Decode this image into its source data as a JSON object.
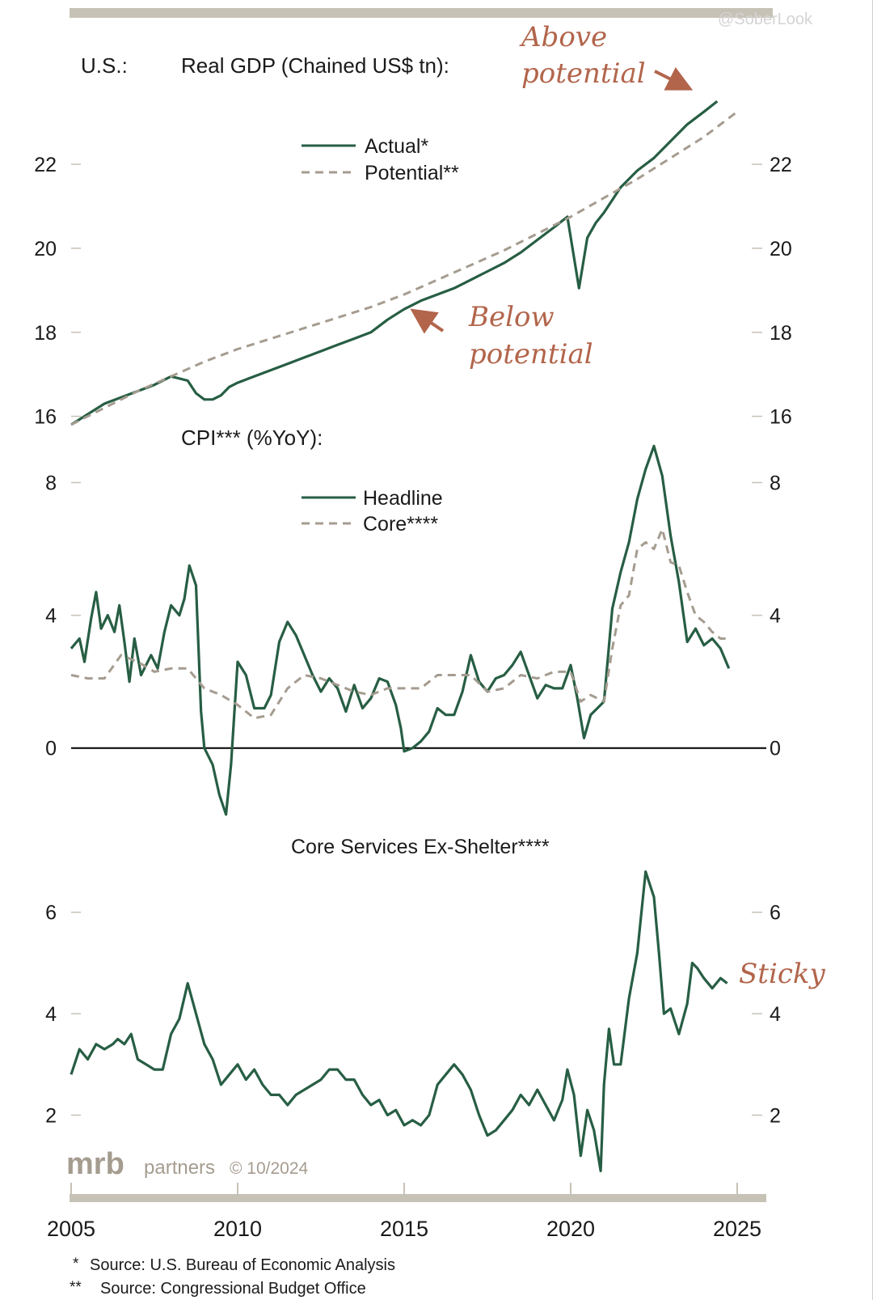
{
  "watermark": "@SoberLook",
  "colors": {
    "actual": "#275e44",
    "potential": "#a59c90",
    "annotation": "#b2654b",
    "axis": "#c7c2b6",
    "text": "#1a1a1a"
  },
  "chart_data": [
    {
      "type": "line",
      "panel": "gdp",
      "prefix": "U.S.:",
      "title": "Real GDP (Chained US$ tn):",
      "ylim": [
        15.8,
        23.6
      ],
      "yticks": [
        16,
        18,
        20,
        22
      ],
      "ytick_labels": [
        "16",
        "18",
        "20",
        "22"
      ],
      "legend": [
        "Actual*",
        "Potential**"
      ],
      "annotations": {
        "above": [
          "Above",
          "potential"
        ],
        "below": [
          "Below",
          "potential"
        ]
      },
      "series": [
        {
          "name": "Actual*",
          "x": [
            2005.0,
            2005.5,
            2006.0,
            2006.5,
            2007.0,
            2007.5,
            2008.0,
            2008.5,
            2008.75,
            2009.0,
            2009.25,
            2009.5,
            2009.75,
            2010.0,
            2010.5,
            2011.0,
            2011.5,
            2012.0,
            2012.5,
            2013.0,
            2013.5,
            2014.0,
            2014.5,
            2015.0,
            2015.5,
            2016.0,
            2016.5,
            2017.0,
            2017.5,
            2018.0,
            2018.5,
            2019.0,
            2019.5,
            2019.9,
            2020.25,
            2020.5,
            2020.75,
            2021.0,
            2021.5,
            2022.0,
            2022.5,
            2023.0,
            2023.5,
            2024.0,
            2024.4
          ],
          "values": [
            15.8,
            16.05,
            16.3,
            16.45,
            16.6,
            16.75,
            16.95,
            16.85,
            16.55,
            16.4,
            16.4,
            16.5,
            16.7,
            16.8,
            16.95,
            17.1,
            17.25,
            17.4,
            17.55,
            17.7,
            17.85,
            18.0,
            18.3,
            18.55,
            18.75,
            18.9,
            19.05,
            19.25,
            19.45,
            19.65,
            19.9,
            20.2,
            20.5,
            20.75,
            19.05,
            20.25,
            20.6,
            20.85,
            21.45,
            21.85,
            22.15,
            22.55,
            22.95,
            23.25,
            23.5
          ]
        },
        {
          "name": "Potential**",
          "x": [
            2005,
            2006,
            2007,
            2008,
            2009,
            2010,
            2011,
            2012,
            2013,
            2014,
            2015,
            2016,
            2017,
            2018,
            2019,
            2020,
            2021,
            2022,
            2023,
            2024,
            2025
          ],
          "values": [
            15.8,
            16.2,
            16.6,
            16.95,
            17.3,
            17.6,
            17.85,
            18.1,
            18.35,
            18.6,
            18.9,
            19.25,
            19.6,
            19.95,
            20.35,
            20.75,
            21.2,
            21.65,
            22.15,
            22.65,
            23.25
          ]
        }
      ]
    },
    {
      "type": "line",
      "panel": "cpi",
      "title": "CPI*** (%YoY):",
      "ylim": [
        -2.2,
        9.5
      ],
      "yticks": [
        0,
        4,
        8
      ],
      "ytick_labels": [
        "0",
        "4",
        "8"
      ],
      "legend": [
        "Headline",
        "Core****"
      ],
      "series": [
        {
          "name": "Headline",
          "x": [
            2005.0,
            2005.25,
            2005.4,
            2005.6,
            2005.75,
            2005.9,
            2006.1,
            2006.3,
            2006.45,
            2006.6,
            2006.75,
            2006.9,
            2007.1,
            2007.25,
            2007.4,
            2007.6,
            2007.8,
            2008.0,
            2008.25,
            2008.4,
            2008.55,
            2008.75,
            2008.9,
            2009.0,
            2009.25,
            2009.45,
            2009.65,
            2009.8,
            2010.0,
            2010.25,
            2010.5,
            2010.8,
            2011.0,
            2011.25,
            2011.5,
            2011.75,
            2012.0,
            2012.25,
            2012.5,
            2012.75,
            2013.0,
            2013.25,
            2013.5,
            2013.75,
            2014.0,
            2014.25,
            2014.5,
            2014.75,
            2014.9,
            2015.0,
            2015.25,
            2015.5,
            2015.75,
            2016.0,
            2016.25,
            2016.5,
            2016.75,
            2017.0,
            2017.25,
            2017.5,
            2017.75,
            2018.0,
            2018.25,
            2018.5,
            2018.75,
            2019.0,
            2019.25,
            2019.5,
            2019.75,
            2020.0,
            2020.2,
            2020.4,
            2020.6,
            2020.8,
            2021.0,
            2021.25,
            2021.5,
            2021.75,
            2022.0,
            2022.25,
            2022.5,
            2022.75,
            2023.0,
            2023.25,
            2023.5,
            2023.75,
            2024.0,
            2024.25,
            2024.5,
            2024.75
          ],
          "values": [
            3.0,
            3.3,
            2.6,
            3.9,
            4.7,
            3.6,
            4.0,
            3.5,
            4.3,
            3.2,
            2.0,
            3.3,
            2.2,
            2.5,
            2.8,
            2.4,
            3.5,
            4.3,
            4.0,
            4.5,
            5.5,
            4.9,
            1.1,
            0.0,
            -0.5,
            -1.4,
            -2.0,
            -0.5,
            2.6,
            2.2,
            1.2,
            1.2,
            1.6,
            3.2,
            3.8,
            3.4,
            2.8,
            2.2,
            1.7,
            2.1,
            1.8,
            1.1,
            1.9,
            1.2,
            1.5,
            2.1,
            2.0,
            1.3,
            0.6,
            -0.1,
            0.0,
            0.2,
            0.5,
            1.2,
            1.0,
            1.0,
            1.7,
            2.8,
            2.0,
            1.7,
            2.1,
            2.2,
            2.5,
            2.9,
            2.2,
            1.5,
            1.9,
            1.8,
            1.8,
            2.5,
            1.5,
            0.3,
            1.0,
            1.2,
            1.4,
            4.2,
            5.3,
            6.2,
            7.5,
            8.4,
            9.1,
            8.2,
            6.4,
            5.0,
            3.2,
            3.6,
            3.1,
            3.3,
            3.0,
            2.4
          ]
        },
        {
          "name": "Core****",
          "x": [
            2005,
            2005.5,
            2006,
            2006.5,
            2007,
            2007.5,
            2008,
            2008.5,
            2009,
            2009.5,
            2010,
            2010.5,
            2011,
            2011.5,
            2012,
            2012.5,
            2013,
            2013.5,
            2014,
            2014.5,
            2015,
            2015.5,
            2016,
            2016.5,
            2017,
            2017.5,
            2018,
            2018.5,
            2019,
            2019.5,
            2020,
            2020.3,
            2020.6,
            2021,
            2021.25,
            2021.5,
            2021.75,
            2022,
            2022.25,
            2022.5,
            2022.75,
            2023,
            2023.25,
            2023.5,
            2023.75,
            2024,
            2024.25,
            2024.5,
            2024.75
          ],
          "values": [
            2.2,
            2.1,
            2.1,
            2.8,
            2.6,
            2.3,
            2.4,
            2.4,
            1.8,
            1.6,
            1.3,
            0.9,
            1.0,
            1.8,
            2.2,
            2.1,
            1.9,
            1.7,
            1.6,
            1.8,
            1.8,
            1.8,
            2.2,
            2.2,
            2.2,
            1.7,
            1.8,
            2.2,
            2.1,
            2.3,
            2.3,
            1.4,
            1.6,
            1.4,
            3.0,
            4.3,
            4.6,
            6.0,
            6.2,
            6.0,
            6.6,
            5.6,
            5.5,
            4.7,
            4.0,
            3.8,
            3.5,
            3.3,
            3.3
          ]
        }
      ]
    },
    {
      "type": "line",
      "panel": "core-services",
      "title": "Core Services Ex-Shelter****",
      "ylim": [
        0.7,
        7.0
      ],
      "yticks": [
        2,
        4,
        6
      ],
      "ytick_labels": [
        "2",
        "4",
        "6"
      ],
      "annotations": {
        "sticky": "Sticky"
      },
      "series": [
        {
          "name": "Core Services Ex-Shelter****",
          "x": [
            2005.0,
            2005.25,
            2005.5,
            2005.75,
            2006.0,
            2006.25,
            2006.4,
            2006.6,
            2006.8,
            2007.0,
            2007.25,
            2007.5,
            2007.75,
            2008.0,
            2008.25,
            2008.5,
            2008.75,
            2009.0,
            2009.25,
            2009.5,
            2009.75,
            2010.0,
            2010.25,
            2010.5,
            2010.75,
            2011.0,
            2011.25,
            2011.5,
            2011.75,
            2012.0,
            2012.25,
            2012.5,
            2012.75,
            2013.0,
            2013.25,
            2013.5,
            2013.75,
            2014.0,
            2014.25,
            2014.5,
            2014.75,
            2015.0,
            2015.25,
            2015.5,
            2015.75,
            2016.0,
            2016.25,
            2016.5,
            2016.75,
            2017.0,
            2017.25,
            2017.5,
            2017.75,
            2018.0,
            2018.25,
            2018.5,
            2018.75,
            2019.0,
            2019.25,
            2019.5,
            2019.75,
            2019.9,
            2020.1,
            2020.3,
            2020.5,
            2020.7,
            2020.9,
            2021.0,
            2021.15,
            2021.3,
            2021.5,
            2021.75,
            2022.0,
            2022.25,
            2022.5,
            2022.65,
            2022.8,
            2023.0,
            2023.25,
            2023.5,
            2023.65,
            2023.8,
            2024.0,
            2024.25,
            2024.5,
            2024.7
          ],
          "values": [
            2.8,
            3.3,
            3.1,
            3.4,
            3.3,
            3.4,
            3.5,
            3.4,
            3.6,
            3.1,
            3.0,
            2.9,
            2.9,
            3.6,
            3.9,
            4.6,
            4.0,
            3.4,
            3.1,
            2.6,
            2.8,
            3.0,
            2.7,
            2.9,
            2.6,
            2.4,
            2.4,
            2.2,
            2.4,
            2.5,
            2.6,
            2.7,
            2.9,
            2.9,
            2.7,
            2.7,
            2.4,
            2.2,
            2.3,
            2.0,
            2.1,
            1.8,
            1.9,
            1.8,
            2.0,
            2.6,
            2.8,
            3.0,
            2.8,
            2.5,
            2.0,
            1.6,
            1.7,
            1.9,
            2.1,
            2.4,
            2.2,
            2.5,
            2.2,
            1.9,
            2.3,
            2.9,
            2.4,
            1.2,
            2.1,
            1.7,
            0.9,
            2.6,
            3.7,
            3.0,
            3.0,
            4.3,
            5.2,
            6.8,
            6.3,
            5.2,
            4.0,
            4.1,
            3.6,
            4.2,
            5.0,
            4.9,
            4.7,
            4.5,
            4.7,
            4.6
          ]
        }
      ]
    }
  ],
  "x_axis": {
    "ticks": [
      2005,
      2010,
      2015,
      2020,
      2025
    ],
    "tick_labels": [
      "2005",
      "2010",
      "2015",
      "2020",
      "2025"
    ]
  },
  "branding": {
    "logo": "mrb",
    "text": "partners",
    "copyright": "© 10/2024"
  },
  "footnotes": [
    {
      "mark": "*",
      "text": "Source: U.S. Bureau of Economic Analysis"
    },
    {
      "mark": "**",
      "text": "Source: Congressional Budget Office"
    }
  ]
}
